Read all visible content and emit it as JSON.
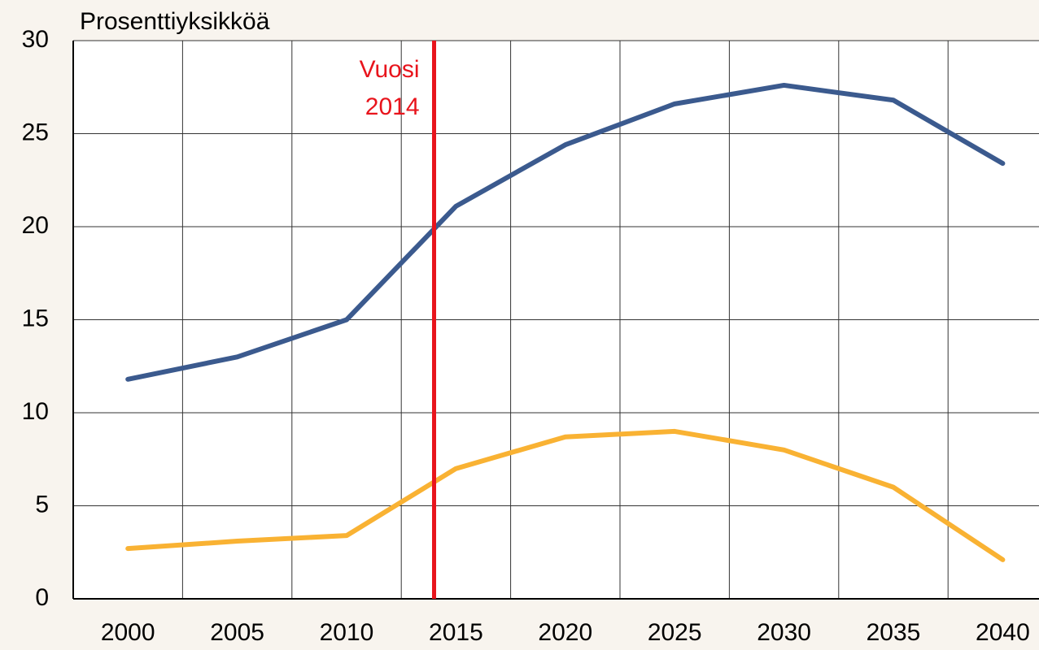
{
  "chart_data": {
    "type": "line",
    "y_axis_label": "Prosenttiyksikköä",
    "categories": [
      "2000",
      "2005",
      "2010",
      "2015",
      "2020",
      "2025",
      "2030",
      "2035",
      "2040"
    ],
    "series": [
      {
        "color": "#3b5a8e",
        "values": [
          11.8,
          13.0,
          15.0,
          21.1,
          24.4,
          26.6,
          27.6,
          26.8,
          23.4
        ]
      },
      {
        "color": "#f9b233",
        "values": [
          2.7,
          3.1,
          3.4,
          7.0,
          8.7,
          9.0,
          8.0,
          6.0,
          2.1
        ]
      }
    ],
    "ylim": [
      0,
      30
    ],
    "yticks": [
      0,
      5,
      10,
      15,
      20,
      25,
      30
    ],
    "grid": true,
    "marker": {
      "x": 2014,
      "label_lines": [
        "Vuosi",
        "2014"
      ],
      "color": "#e8141c"
    }
  }
}
